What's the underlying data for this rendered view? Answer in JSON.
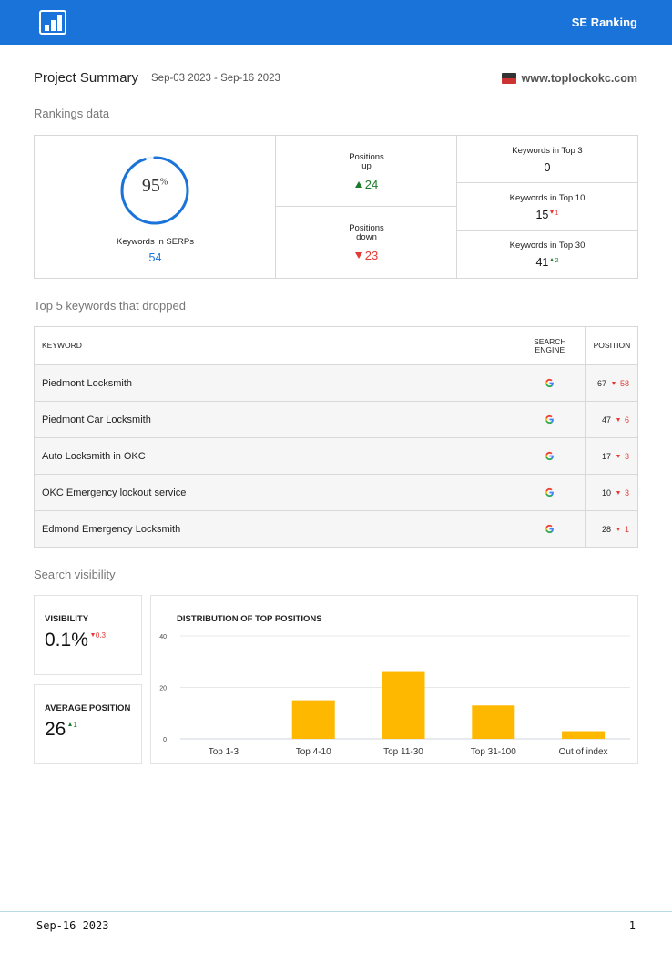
{
  "header": {
    "brand": "SE Ranking",
    "logo_icon": "bar-chart-icon",
    "color": "#1a73d9"
  },
  "summary": {
    "title": "Project Summary",
    "date_range": "Sep-03 2023 - Sep-16 2023",
    "site": "www.toplockokc.com"
  },
  "rankings": {
    "section_title": "Rankings data",
    "serps_percent": "95",
    "percent_sign": "%",
    "serps_fraction": 0.95,
    "serps_label": "Keywords in SERPs",
    "serps_count": "54",
    "positions_up_label_1": "Positions",
    "positions_up_label_2": "up",
    "positions_up": "24",
    "positions_down_label_1": "Positions",
    "positions_down_label_2": "down",
    "positions_down": "23",
    "top3_label": "Keywords in Top 3",
    "top3": "0",
    "top10_label": "Keywords in Top 10",
    "top10": "15",
    "top10_delta": "1",
    "top30_label": "Keywords in Top 30",
    "top30": "41",
    "top30_delta": "2"
  },
  "dropped": {
    "section_title": "Top 5 keywords that dropped",
    "headers": {
      "keyword": "KEYWORD",
      "engine_1": "SEARCH",
      "engine_2": "ENGINE",
      "position": "POSITION"
    },
    "engine_icon": "google-icon",
    "rows": [
      {
        "keyword": "Piedmont Locksmith",
        "position": "67",
        "delta": "58"
      },
      {
        "keyword": "Piedmont Car Locksmith",
        "position": "47",
        "delta": "6"
      },
      {
        "keyword": "Auto Locksmith in OKC",
        "position": "17",
        "delta": "3"
      },
      {
        "keyword": "OKC Emergency lockout service",
        "position": "10",
        "delta": "3"
      },
      {
        "keyword": "Edmond Emergency Locksmith",
        "position": "28",
        "delta": "1"
      }
    ]
  },
  "visibility": {
    "section_title": "Search visibility",
    "visibility_label": "VISIBILITY",
    "visibility_value": "0.1%",
    "visibility_delta": "0.3",
    "avg_label": "AVERAGE POSITION",
    "avg_value": "26",
    "avg_delta": "1"
  },
  "chart_data": {
    "type": "bar",
    "title": "DISTRIBUTION OF TOP POSITIONS",
    "categories": [
      "Top 1-3",
      "Top 4-10",
      "Top 11-30",
      "Top 31-100",
      "Out of index"
    ],
    "values": [
      0,
      15,
      26,
      13,
      3
    ],
    "ylim": [
      0,
      40
    ],
    "yticks": [
      "0",
      "20",
      "40"
    ],
    "bar_color": "#ffb800",
    "grid": true
  },
  "footer": {
    "date": "Sep-16 2023",
    "page": "1"
  }
}
